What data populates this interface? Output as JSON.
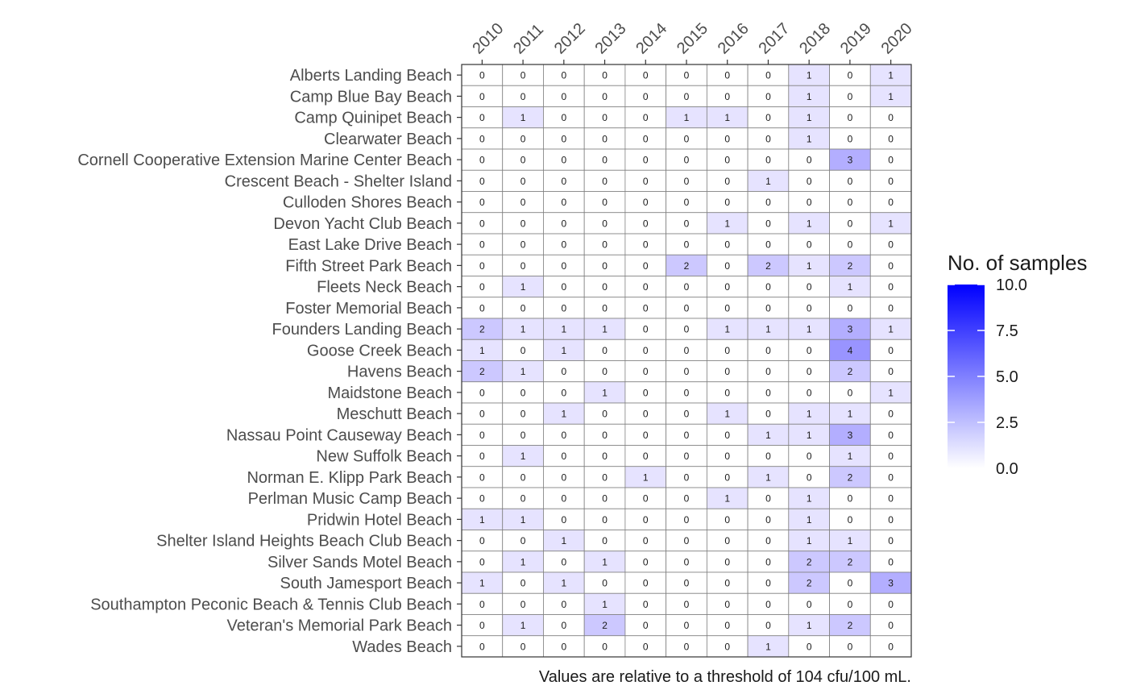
{
  "chart_data": {
    "type": "heatmap",
    "x": [
      "2010",
      "2011",
      "2012",
      "2013",
      "2014",
      "2015",
      "2016",
      "2017",
      "2018",
      "2019",
      "2020"
    ],
    "y": [
      "Alberts Landing Beach",
      "Camp Blue Bay Beach",
      "Camp Quinipet Beach",
      "Clearwater Beach",
      "Cornell Cooperative Extension Marine Center Beach",
      "Crescent Beach - Shelter Island",
      "Culloden Shores Beach",
      "Devon Yacht Club Beach",
      "East Lake Drive Beach",
      "Fifth Street Park Beach",
      "Fleets Neck Beach",
      "Foster Memorial Beach",
      "Founders Landing Beach",
      "Goose Creek Beach",
      "Havens Beach",
      "Maidstone Beach",
      "Meschutt Beach",
      "Nassau Point Causeway Beach",
      "New Suffolk Beach",
      "Norman E. Klipp Park Beach",
      "Perlman Music Camp Beach",
      "Pridwin Hotel Beach",
      "Shelter Island Heights Beach Club Beach",
      "Silver Sands Motel Beach",
      "South Jamesport Beach",
      "Southampton Peconic Beach & Tennis Club Beach",
      "Veteran's Memorial Park Beach",
      "Wades Beach"
    ],
    "values": [
      [
        0,
        0,
        0,
        0,
        0,
        0,
        0,
        0,
        1,
        0,
        1
      ],
      [
        0,
        0,
        0,
        0,
        0,
        0,
        0,
        0,
        1,
        0,
        1
      ],
      [
        0,
        1,
        0,
        0,
        0,
        1,
        1,
        0,
        1,
        0,
        0
      ],
      [
        0,
        0,
        0,
        0,
        0,
        0,
        0,
        0,
        1,
        0,
        0
      ],
      [
        0,
        0,
        0,
        0,
        0,
        0,
        0,
        0,
        0,
        3,
        0
      ],
      [
        0,
        0,
        0,
        0,
        0,
        0,
        0,
        1,
        0,
        0,
        0
      ],
      [
        0,
        0,
        0,
        0,
        0,
        0,
        0,
        0,
        0,
        0,
        0
      ],
      [
        0,
        0,
        0,
        0,
        0,
        0,
        1,
        0,
        1,
        0,
        1
      ],
      [
        0,
        0,
        0,
        0,
        0,
        0,
        0,
        0,
        0,
        0,
        0
      ],
      [
        0,
        0,
        0,
        0,
        0,
        2,
        0,
        2,
        1,
        2,
        0
      ],
      [
        0,
        1,
        0,
        0,
        0,
        0,
        0,
        0,
        0,
        1,
        0
      ],
      [
        0,
        0,
        0,
        0,
        0,
        0,
        0,
        0,
        0,
        0,
        0
      ],
      [
        2,
        1,
        1,
        1,
        0,
        0,
        1,
        1,
        1,
        3,
        1
      ],
      [
        1,
        0,
        1,
        0,
        0,
        0,
        0,
        0,
        0,
        4,
        0
      ],
      [
        2,
        1,
        0,
        0,
        0,
        0,
        0,
        0,
        0,
        2,
        0
      ],
      [
        0,
        0,
        0,
        1,
        0,
        0,
        0,
        0,
        0,
        0,
        1
      ],
      [
        0,
        0,
        1,
        0,
        0,
        0,
        1,
        0,
        1,
        1,
        0
      ],
      [
        0,
        0,
        0,
        0,
        0,
        0,
        0,
        1,
        1,
        3,
        0
      ],
      [
        0,
        1,
        0,
        0,
        0,
        0,
        0,
        0,
        0,
        1,
        0
      ],
      [
        0,
        0,
        0,
        0,
        1,
        0,
        0,
        1,
        0,
        2,
        0
      ],
      [
        0,
        0,
        0,
        0,
        0,
        0,
        1,
        0,
        1,
        0,
        0
      ],
      [
        1,
        1,
        0,
        0,
        0,
        0,
        0,
        0,
        1,
        0,
        0
      ],
      [
        0,
        0,
        1,
        0,
        0,
        0,
        0,
        0,
        1,
        1,
        0
      ],
      [
        0,
        1,
        0,
        1,
        0,
        0,
        0,
        0,
        2,
        2,
        0
      ],
      [
        1,
        0,
        1,
        0,
        0,
        0,
        0,
        0,
        2,
        0,
        3
      ],
      [
        0,
        0,
        0,
        1,
        0,
        0,
        0,
        0,
        0,
        0,
        0
      ],
      [
        0,
        1,
        0,
        2,
        0,
        0,
        0,
        0,
        1,
        2,
        0
      ],
      [
        0,
        0,
        0,
        0,
        0,
        0,
        0,
        1,
        0,
        0,
        0
      ]
    ],
    "legend": {
      "title": "No. of samples",
      "range": [
        0,
        10
      ],
      "ticks": [
        "10.0",
        "7.5",
        "5.0",
        "2.5",
        "0.0"
      ],
      "tick_values": [
        10,
        7.5,
        5,
        2.5,
        0
      ],
      "low_color": "#ffffff",
      "high_color": "#0000ff",
      "placement": "right"
    },
    "caption": "Values are relative to a threshold of 104 cfu/100 mL.",
    "x_position": "top",
    "grid": false
  }
}
